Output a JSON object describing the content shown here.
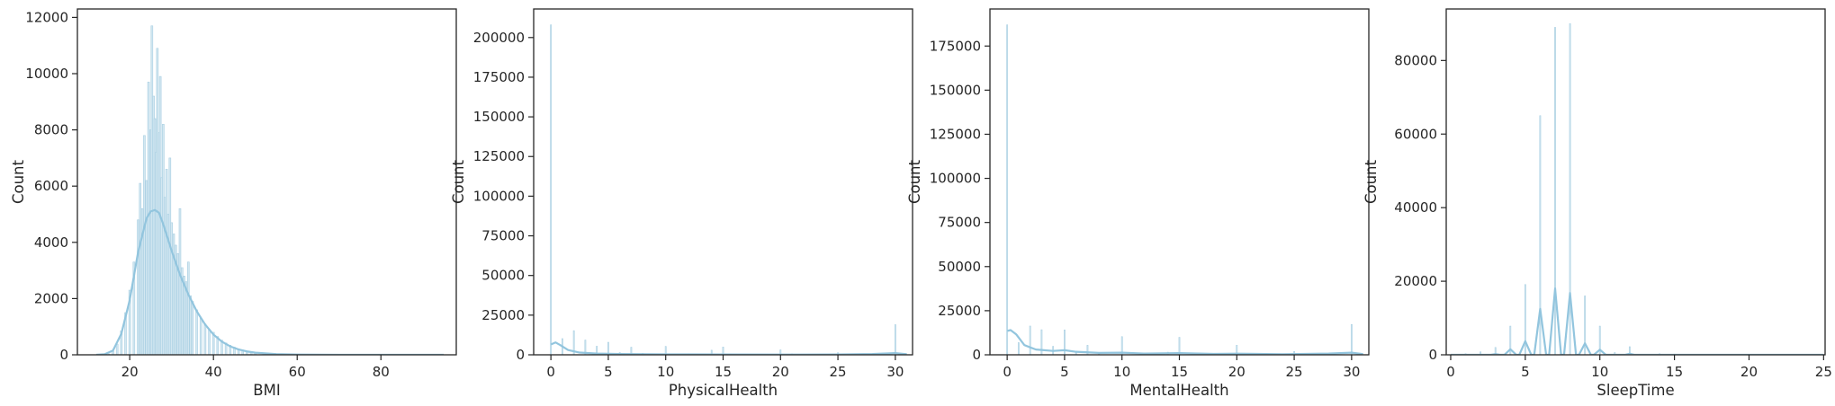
{
  "style": {
    "bar_fill": "#d3e7f1",
    "bar_edge": "#a8cfe2",
    "kde_color": "#92c5de",
    "axis_color": "#262626"
  },
  "chart_data": [
    {
      "type": "bar",
      "title": "",
      "xlabel": "BMI",
      "ylabel": "Count",
      "xlim": [
        7.5,
        98
      ],
      "ylim": [
        0,
        12300
      ],
      "xticks": [
        20,
        40,
        60,
        80
      ],
      "yticks": [
        0,
        2000,
        4000,
        6000,
        8000,
        10000,
        12000
      ],
      "bars": [
        [
          15,
          30
        ],
        [
          16,
          120
        ],
        [
          17,
          380
        ],
        [
          18,
          850
        ],
        [
          19,
          1500
        ],
        [
          20,
          2300
        ],
        [
          21,
          3300
        ],
        [
          22,
          4800
        ],
        [
          22.5,
          6100
        ],
        [
          23,
          5200
        ],
        [
          23.5,
          7800
        ],
        [
          24,
          6200
        ],
        [
          24.5,
          9700
        ],
        [
          25,
          8000
        ],
        [
          25.3,
          11700
        ],
        [
          25.7,
          9200
        ],
        [
          26,
          8400
        ],
        [
          26.3,
          7200
        ],
        [
          26.6,
          10900
        ],
        [
          27,
          7900
        ],
        [
          27.3,
          9900
        ],
        [
          27.6,
          6300
        ],
        [
          28,
          8200
        ],
        [
          28.4,
          5600
        ],
        [
          28.8,
          6600
        ],
        [
          29.2,
          5000
        ],
        [
          29.6,
          7000
        ],
        [
          30,
          4700
        ],
        [
          30.5,
          4300
        ],
        [
          31,
          3900
        ],
        [
          31.5,
          3600
        ],
        [
          32,
          5200
        ],
        [
          32.5,
          3100
        ],
        [
          33,
          2800
        ],
        [
          33.5,
          2600
        ],
        [
          34,
          3300
        ],
        [
          34.5,
          2100
        ],
        [
          35,
          1900
        ],
        [
          36,
          1600
        ],
        [
          37,
          1300
        ],
        [
          38,
          1100
        ],
        [
          39,
          900
        ],
        [
          40,
          800
        ],
        [
          41,
          650
        ],
        [
          42,
          520
        ],
        [
          43,
          420
        ],
        [
          44,
          340
        ],
        [
          45,
          270
        ],
        [
          46,
          210
        ],
        [
          47,
          170
        ],
        [
          48,
          130
        ],
        [
          49,
          100
        ],
        [
          50,
          80
        ],
        [
          52,
          55
        ],
        [
          54,
          35
        ],
        [
          56,
          22
        ],
        [
          58,
          14
        ],
        [
          60,
          10
        ],
        [
          65,
          6
        ],
        [
          70,
          4
        ],
        [
          80,
          2
        ],
        [
          95,
          1
        ]
      ],
      "kde": [
        [
          12,
          0
        ],
        [
          14,
          20
        ],
        [
          16,
          150
        ],
        [
          18,
          750
        ],
        [
          20,
          1950
        ],
        [
          22,
          3650
        ],
        [
          24,
          4850
        ],
        [
          25,
          5100
        ],
        [
          26,
          5150
        ],
        [
          27,
          5050
        ],
        [
          28,
          4650
        ],
        [
          30,
          3700
        ],
        [
          32,
          2850
        ],
        [
          34,
          2150
        ],
        [
          36,
          1550
        ],
        [
          38,
          1080
        ],
        [
          40,
          720
        ],
        [
          42,
          470
        ],
        [
          44,
          300
        ],
        [
          46,
          190
        ],
        [
          48,
          120
        ],
        [
          50,
          75
        ],
        [
          55,
          25
        ],
        [
          60,
          8
        ],
        [
          70,
          2
        ],
        [
          80,
          0
        ],
        [
          95,
          0
        ]
      ]
    },
    {
      "type": "bar",
      "title": "",
      "xlabel": "PhysicalHealth",
      "ylabel": "Count",
      "xlim": [
        -1.5,
        31.5
      ],
      "ylim": [
        0,
        218000
      ],
      "xticks": [
        0,
        5,
        10,
        15,
        20,
        25,
        30
      ],
      "yticks": [
        0,
        25000,
        50000,
        75000,
        100000,
        125000,
        150000,
        175000,
        200000
      ],
      "bars": [
        [
          0,
          208000
        ],
        [
          1,
          10200
        ],
        [
          2,
          15200
        ],
        [
          3,
          9300
        ],
        [
          4,
          5400
        ],
        [
          5,
          7900
        ],
        [
          6,
          1400
        ],
        [
          7,
          4800
        ],
        [
          8,
          950
        ],
        [
          10,
          5300
        ],
        [
          12,
          700
        ],
        [
          14,
          2900
        ],
        [
          15,
          4900
        ],
        [
          20,
          3100
        ],
        [
          21,
          650
        ],
        [
          25,
          1300
        ],
        [
          28,
          450
        ],
        [
          29,
          200
        ],
        [
          30,
          19000
        ]
      ],
      "kde": [
        [
          0,
          6500
        ],
        [
          0.4,
          7800
        ],
        [
          0.8,
          6200
        ],
        [
          1.5,
          3000
        ],
        [
          2.5,
          1400
        ],
        [
          4,
          800
        ],
        [
          6,
          500
        ],
        [
          10,
          300
        ],
        [
          15,
          250
        ],
        [
          20,
          180
        ],
        [
          25,
          200
        ],
        [
          28,
          500
        ],
        [
          29.5,
          900
        ],
        [
          30,
          1100
        ],
        [
          31,
          400
        ]
      ]
    },
    {
      "type": "bar",
      "title": "",
      "xlabel": "MentalHealth",
      "ylabel": "Count",
      "xlim": [
        -1.5,
        31.5
      ],
      "ylim": [
        0,
        196000
      ],
      "xticks": [
        0,
        5,
        10,
        15,
        20,
        25,
        30
      ],
      "yticks": [
        0,
        25000,
        50000,
        75000,
        100000,
        125000,
        150000,
        175000
      ],
      "bars": [
        [
          0,
          187000
        ],
        [
          1,
          6900
        ],
        [
          2,
          16300
        ],
        [
          3,
          14200
        ],
        [
          4,
          4800
        ],
        [
          5,
          14100
        ],
        [
          6,
          1100
        ],
        [
          7,
          5400
        ],
        [
          8,
          1000
        ],
        [
          10,
          10300
        ],
        [
          12,
          800
        ],
        [
          14,
          1500
        ],
        [
          15,
          9900
        ],
        [
          20,
          5400
        ],
        [
          25,
          1900
        ],
        [
          28,
          500
        ],
        [
          30,
          17200
        ]
      ],
      "kde": [
        [
          0,
          13500
        ],
        [
          0.3,
          14000
        ],
        [
          0.8,
          11500
        ],
        [
          1.5,
          5500
        ],
        [
          2.5,
          3000
        ],
        [
          4,
          2200
        ],
        [
          5,
          2600
        ],
        [
          6,
          1700
        ],
        [
          8,
          1100
        ],
        [
          10,
          1200
        ],
        [
          12,
          700
        ],
        [
          15,
          1000
        ],
        [
          18,
          500
        ],
        [
          20,
          650
        ],
        [
          24,
          350
        ],
        [
          28,
          700
        ],
        [
          30,
          1200
        ],
        [
          31,
          400
        ]
      ]
    },
    {
      "type": "bar",
      "title": "",
      "xlabel": "SleepTime",
      "ylabel": "Count",
      "xlim": [
        -0.3,
        25.1
      ],
      "ylim": [
        0,
        94000
      ],
      "xticks": [
        0,
        5,
        10,
        15,
        20,
        25
      ],
      "yticks": [
        0,
        20000,
        40000,
        60000,
        80000
      ],
      "bars": [
        [
          1,
          300
        ],
        [
          2,
          800
        ],
        [
          3,
          2000
        ],
        [
          4,
          7800
        ],
        [
          5,
          19100
        ],
        [
          6,
          65000
        ],
        [
          7,
          89000
        ],
        [
          8,
          90000
        ],
        [
          9,
          16000
        ],
        [
          10,
          7800
        ],
        [
          11,
          600
        ],
        [
          12,
          2200
        ],
        [
          13,
          150
        ],
        [
          14,
          300
        ],
        [
          15,
          200
        ],
        [
          16,
          150
        ],
        [
          18,
          100
        ],
        [
          20,
          80
        ],
        [
          24,
          50
        ]
      ],
      "kde": [
        [
          0,
          0
        ],
        [
          2.7,
          0
        ],
        [
          3,
          200
        ],
        [
          3.3,
          0
        ],
        [
          3.6,
          0
        ],
        [
          4,
          1500
        ],
        [
          4.4,
          0
        ],
        [
          4.6,
          0
        ],
        [
          5,
          3700
        ],
        [
          5.4,
          0
        ],
        [
          5.6,
          0
        ],
        [
          6,
          12500
        ],
        [
          6.4,
          0
        ],
        [
          6.6,
          0
        ],
        [
          7,
          18000
        ],
        [
          7.4,
          0
        ],
        [
          7.6,
          0
        ],
        [
          8,
          16800
        ],
        [
          8.4,
          0
        ],
        [
          8.6,
          0
        ],
        [
          9,
          3100
        ],
        [
          9.4,
          0
        ],
        [
          9.6,
          0
        ],
        [
          10,
          1400
        ],
        [
          10.4,
          0
        ],
        [
          11.7,
          0
        ],
        [
          12,
          300
        ],
        [
          12.3,
          0
        ],
        [
          25,
          0
        ]
      ]
    }
  ]
}
